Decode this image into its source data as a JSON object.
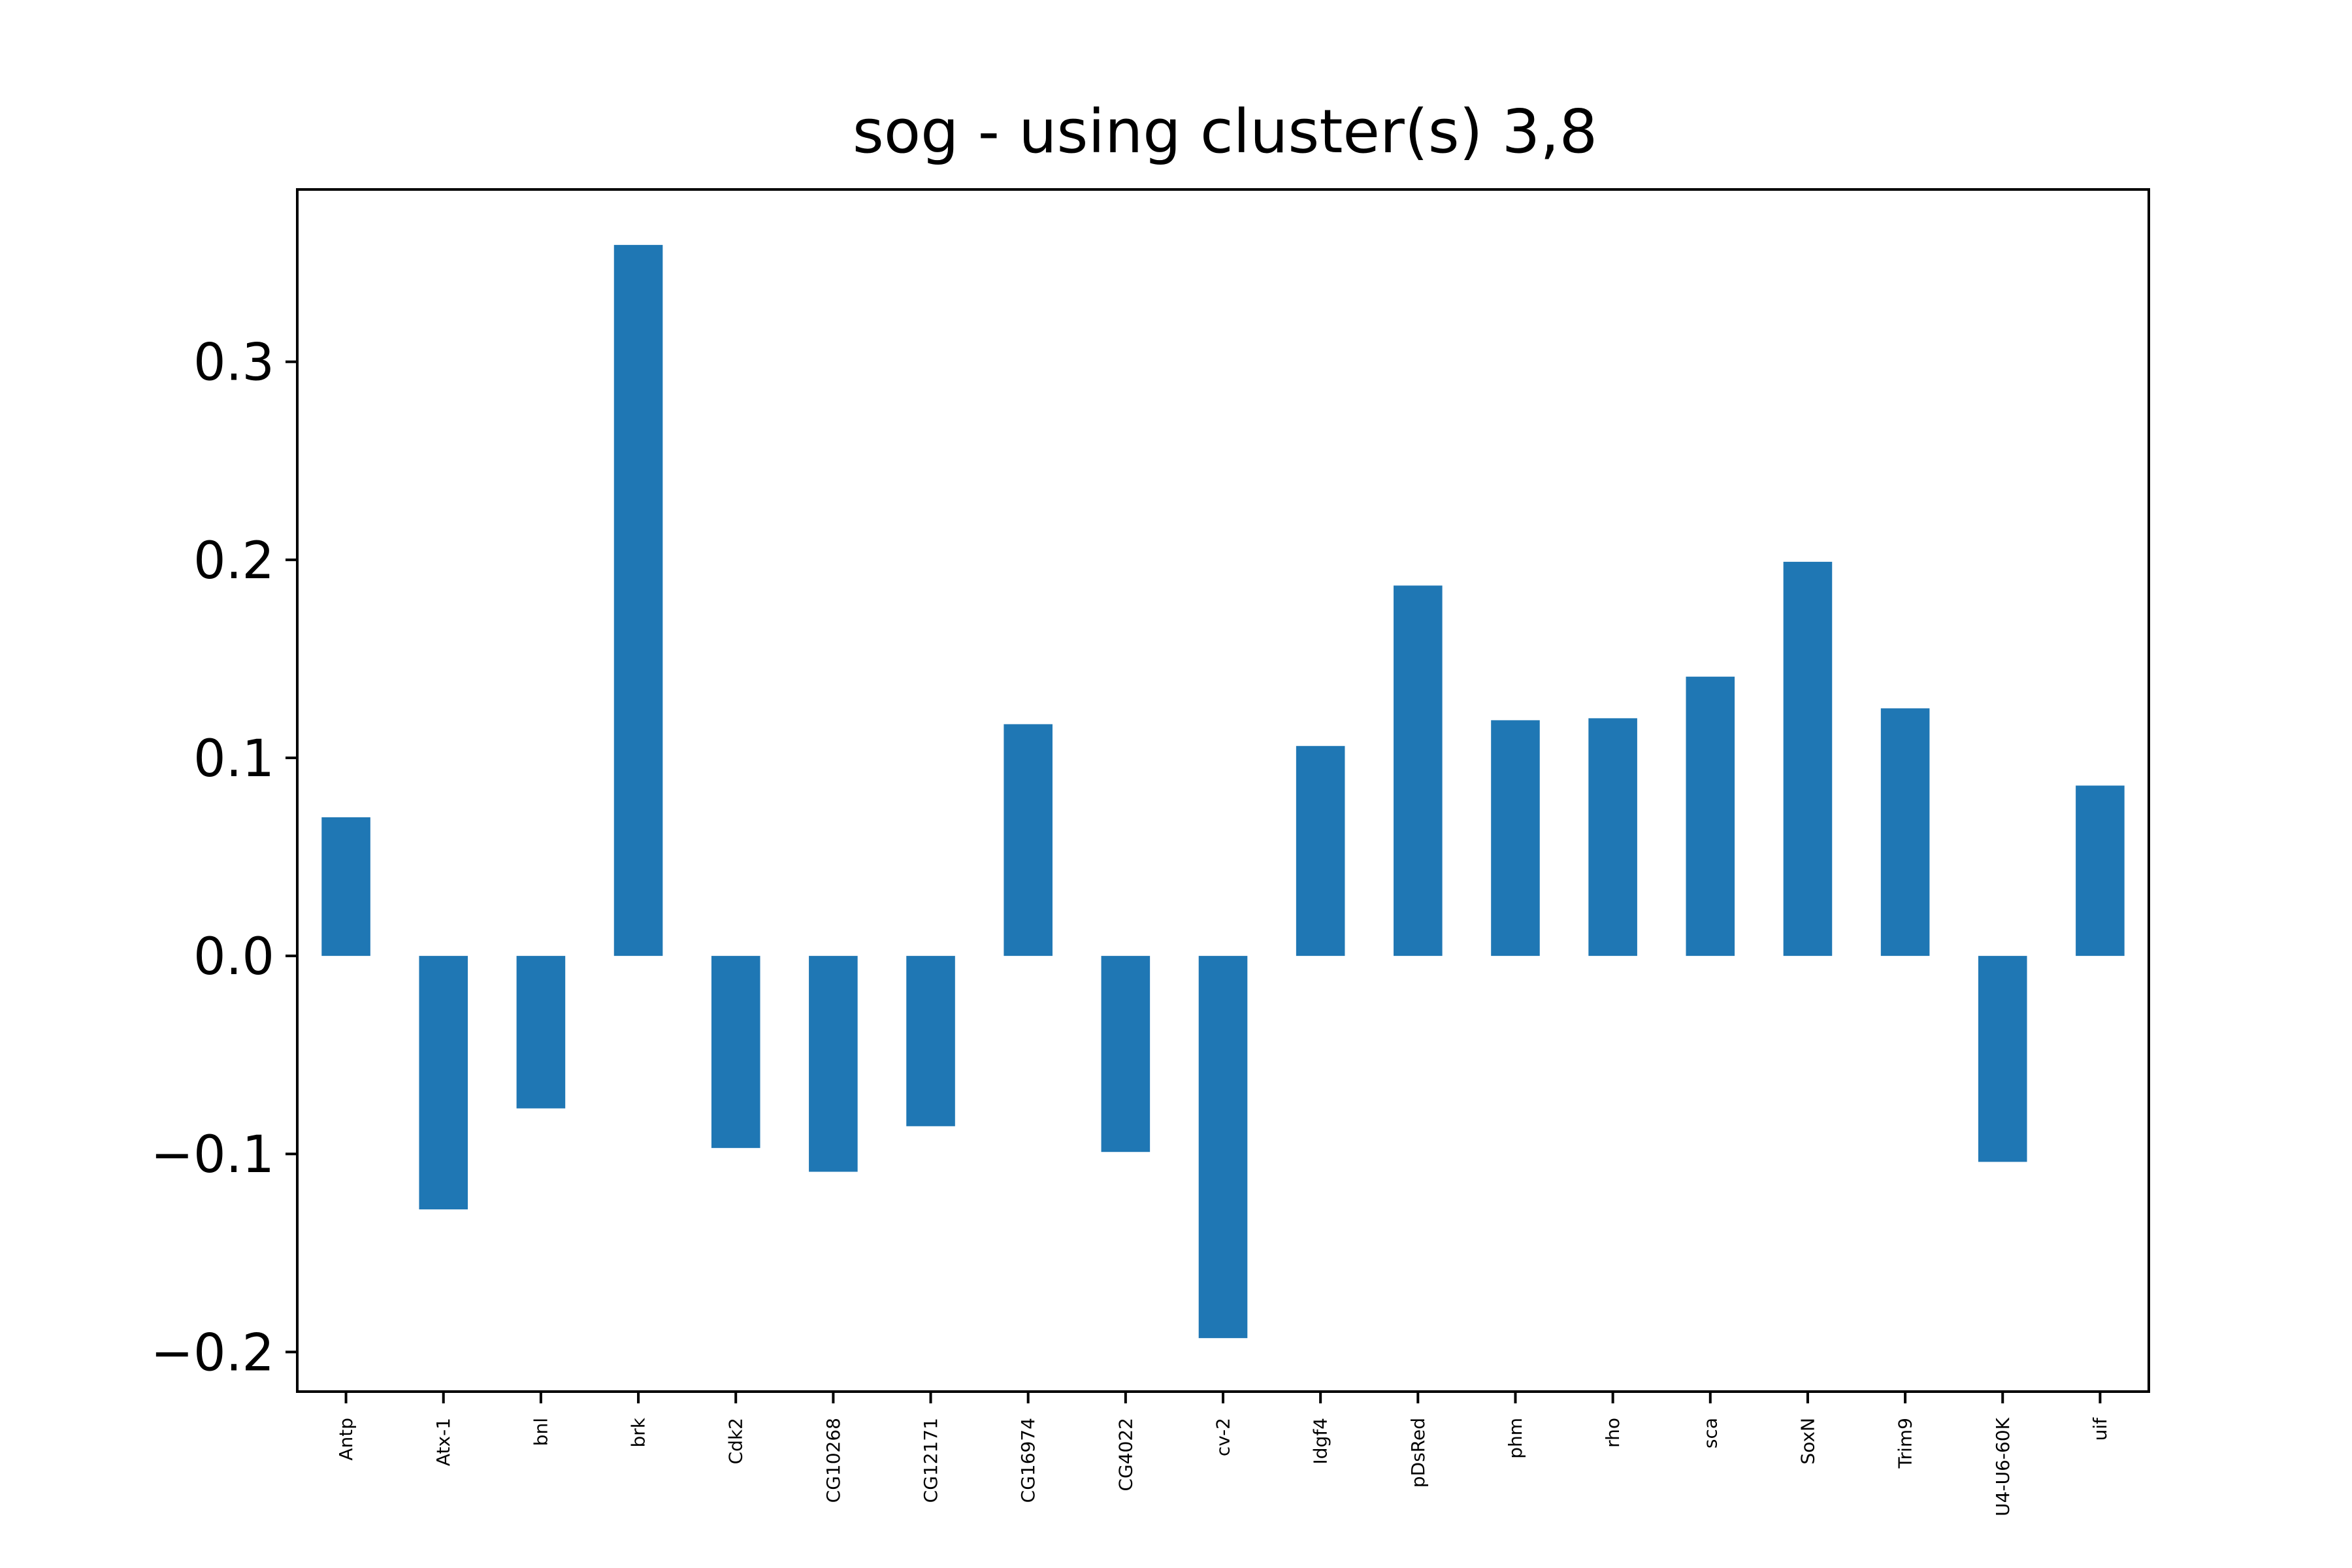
{
  "chart_data": {
    "type": "bar",
    "title": "sog - using cluster(s) 3,8",
    "xlabel": "",
    "ylabel": "",
    "categories": [
      "Antp",
      "Atx-1",
      "bnl",
      "brk",
      "Cdk2",
      "CG10268",
      "CG12171",
      "CG16974",
      "CG4022",
      "cv-2",
      "Idgf4",
      "pDsRed",
      "phm",
      "rho",
      "sca",
      "SoxN",
      "Trim9",
      "U4-U6-60K",
      "uif"
    ],
    "values": [
      0.07,
      -0.128,
      -0.077,
      0.359,
      -0.097,
      -0.109,
      -0.086,
      0.117,
      -0.099,
      -0.193,
      0.106,
      0.187,
      0.119,
      0.12,
      0.141,
      0.199,
      0.125,
      -0.104,
      0.086
    ],
    "ylim": [
      -0.22,
      0.387
    ],
    "yticks": [
      -0.2,
      -0.1,
      0.0,
      0.1,
      0.2,
      0.3
    ],
    "ytick_labels": [
      "−0.2",
      "−0.1",
      "0.0",
      "0.1",
      "0.2",
      "0.3"
    ],
    "bar_color": "#1f77b4",
    "grid": false,
    "legend": "none"
  }
}
